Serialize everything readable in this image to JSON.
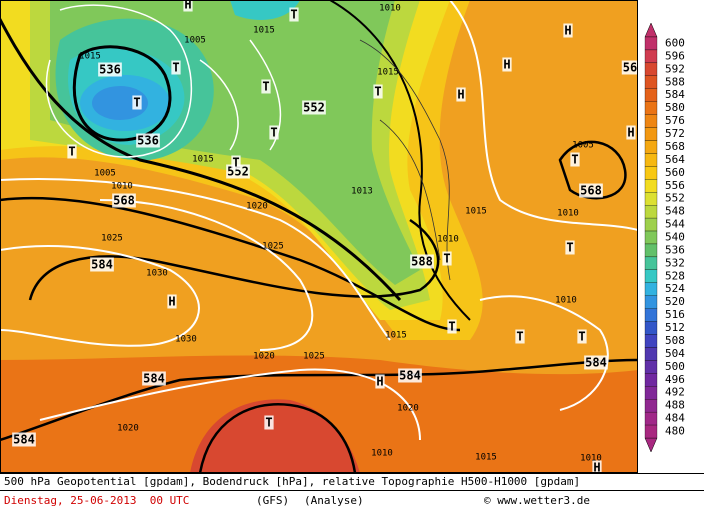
{
  "map": {
    "labels": [
      "536",
      "T",
      "536",
      "552",
      "552",
      "568",
      "584",
      "584",
      "584",
      "588",
      "584",
      "584",
      "568",
      "56",
      "H",
      "H",
      "H",
      "H",
      "H",
      "H",
      "H",
      "T",
      "T",
      "T",
      "T",
      "T",
      "T",
      "T",
      "T",
      "T",
      "T",
      "T",
      "T",
      "T",
      "T",
      "H"
    ],
    "isobar_labels": [
      "1015",
      "1005",
      "1015",
      "1010",
      "1015",
      "1015",
      "1005",
      "1010",
      "1020",
      "1025",
      "1025",
      "1030",
      "1030",
      "1020",
      "1025",
      "1015",
      "1020",
      "1020",
      "1010",
      "1015",
      "1010",
      "1010",
      "1010",
      "1010",
      "1015",
      "1005",
      "1013"
    ]
  },
  "colorbar": {
    "values": [
      600,
      596,
      592,
      588,
      584,
      580,
      576,
      572,
      568,
      564,
      560,
      556,
      552,
      548,
      544,
      540,
      536,
      532,
      528,
      524,
      520,
      516,
      512,
      508,
      504,
      500,
      496,
      492,
      488,
      484,
      480
    ],
    "colors": [
      "#c0306a",
      "#d03c50",
      "#d84830",
      "#de5522",
      "#e4621a",
      "#ea7416",
      "#ee8614",
      "#f29812",
      "#f4a812",
      "#f6b812",
      "#f8c814",
      "#f2dc20",
      "#dce032",
      "#bcd83e",
      "#9ed04c",
      "#80c85a",
      "#62c06a",
      "#46c49a",
      "#36c8c4",
      "#32b2e0",
      "#3294e0",
      "#3274d8",
      "#3256c8",
      "#4044c0",
      "#5038b0",
      "#6030a8",
      "#7028a0",
      "#802898",
      "#902890",
      "#a02888",
      "#a82880"
    ]
  },
  "footer": {
    "description": "500 hPa Geopotential [gpdam], Bodendruck [hPa], relative Topographie H500-H1000 [gpdam]",
    "date": "Dienstag, 25-06-2013  00 UTC",
    "model": "(GFS)",
    "run": "(Analyse)",
    "credit": "© www.wetter3.de"
  }
}
